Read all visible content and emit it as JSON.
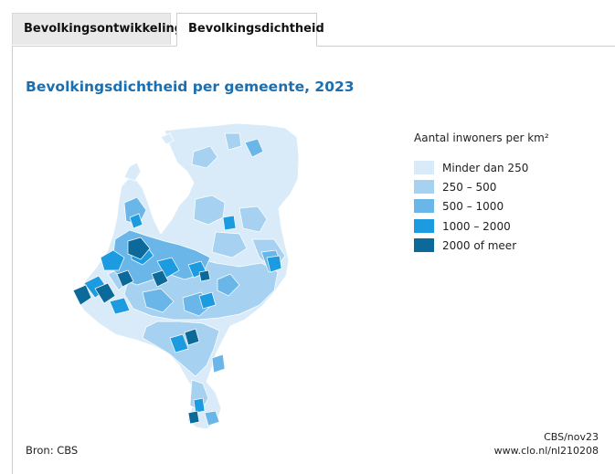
{
  "tabs": [
    {
      "label": "Bevolkingsontwikkeling",
      "active": false
    },
    {
      "label": "Bevolkingsdichtheid",
      "active": true
    }
  ],
  "map": {
    "title": "Bevolkingsdichtheid per gemeente, 2023",
    "legend": {
      "title": "Aantal inwoners per km²",
      "classes": [
        {
          "label": "Minder dan 250",
          "color": "#d9ebf8"
        },
        {
          "label": "250 – 500",
          "color": "#a6d1f0"
        },
        {
          "label": "500 – 1000",
          "color": "#6bb6e8"
        },
        {
          "label": "1000 – 2000",
          "color": "#1d9be0"
        },
        {
          "label": "2000 of meer",
          "color": "#0b6a9a"
        }
      ]
    }
  },
  "footer": {
    "source": "Bron: CBS",
    "credit_line1": "CBS/nov23",
    "credit_line2": "www.clo.nl/nl210208"
  },
  "colors": {
    "title": "#1b6fb0",
    "border": "#ffffff"
  }
}
